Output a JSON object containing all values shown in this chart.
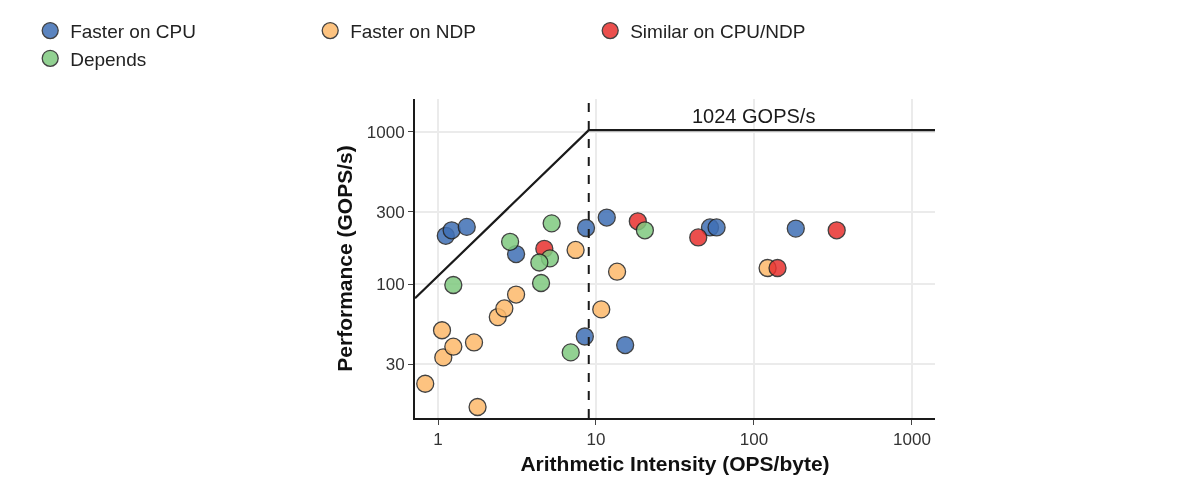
{
  "chart_data": {
    "type": "scatter",
    "xlabel": "Arithmetic Intensity (OPS/byte)",
    "ylabel": "Performance (GOPS/s)",
    "log": "xy",
    "grid": true,
    "legend": "top",
    "marker": "circle",
    "xlim": [
      0.715,
      1400
    ],
    "ylim": [
      13.3,
      1640
    ],
    "xticks": [
      1,
      10,
      100,
      1000
    ],
    "yticks": [
      30,
      100,
      300,
      1000
    ],
    "series": [
      {
        "name": "Faster on CPU",
        "color": "#3f6fb5",
        "x": [
          1.12,
          1.22,
          1.52,
          3.12,
          8.65,
          11.7,
          8.5,
          15.3,
          52.7,
          58,
          184
        ],
        "values": [
          208,
          226,
          238,
          158,
          234,
          274,
          45.5,
          40,
          236,
          236,
          232
        ]
      },
      {
        "name": "Faster on NDP",
        "color": "#fdb96b",
        "x": [
          0.83,
          1.06,
          1.08,
          1.25,
          1.69,
          1.78,
          2.39,
          2.63,
          3.12,
          7.43,
          13.6,
          10.8,
          122
        ],
        "values": [
          22.3,
          50,
          33.2,
          39,
          41.6,
          15.7,
          61,
          69.5,
          85.7,
          168,
          121,
          68.5,
          128
        ]
      },
      {
        "name": "Similar on CPU/NDP",
        "color": "#e8312f",
        "x": [
          4.71,
          18.4,
          44.4,
          141,
          334
        ],
        "values": [
          171,
          259,
          203,
          128,
          226
        ]
      },
      {
        "name": "Depends",
        "color": "#7fc97f",
        "x": [
          1.25,
          2.86,
          5.24,
          5.11,
          4.38,
          4.49,
          6.92,
          20.4
        ],
        "values": [
          99,
          190,
          251,
          148,
          139,
          102,
          35.8,
          226
        ]
      },
      {
        "type": "line",
        "color": "#1a1a1a",
        "line_style": "solid",
        "marker": "none",
        "x": [
          0.715,
          9,
          1400
        ],
        "values": [
          81,
          1024,
          1024
        ]
      }
    ],
    "ref_lines": [
      {
        "axis": "x",
        "value": 9,
        "color": "#1a1a1a",
        "line_style": "dashed"
      }
    ],
    "annotations": [
      {
        "text": "1024 GOPS/s",
        "x": 100,
        "y": 1024
      }
    ]
  }
}
